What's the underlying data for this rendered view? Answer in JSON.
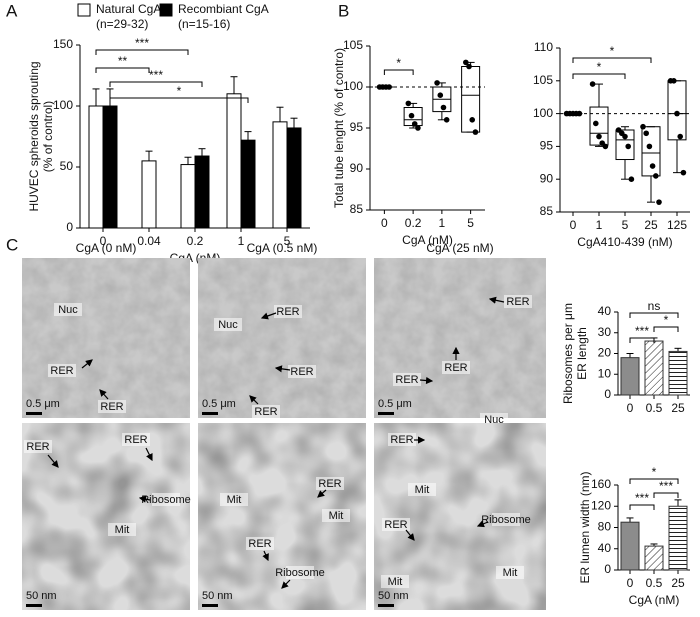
{
  "panel_labels": [
    "A",
    "B",
    "C"
  ],
  "chart_data": [
    {
      "type": "bar",
      "xlabel": "CgA (nM)",
      "ylabel": [
        "HUVEC spheroids sprouting",
        "(% of control)"
      ],
      "categories": [
        "0",
        "0.04",
        "0.2",
        "1",
        "5"
      ],
      "series": [
        {
          "name": "Natural CgA",
          "n": "(n=29-32)",
          "color": "#ffffff",
          "values": [
            100,
            55,
            52,
            110,
            87
          ],
          "errors": [
            14,
            8,
            6,
            14,
            12
          ]
        },
        {
          "name": "Recombiant CgA",
          "n": "(n=15-16)",
          "color": "#000000",
          "values": [
            100,
            null,
            59,
            72,
            82
          ],
          "errors": [
            14,
            null,
            6,
            7,
            8
          ]
        }
      ],
      "ylim": [
        0,
        150
      ],
      "yticks": [
        0,
        50,
        100,
        150
      ],
      "annotations": [
        "***",
        "**",
        "***",
        "*"
      ]
    },
    {
      "type": "box",
      "xlabel": "CgA (nM)",
      "ylabel": "Total tube lenght (% of contro)",
      "categories": [
        "0",
        "0.2",
        "1",
        "5"
      ],
      "boxes": [
        {
          "min": 100,
          "q1": 100,
          "median": 100,
          "q3": 100,
          "max": 100,
          "points": [
            100,
            100,
            100,
            100
          ]
        },
        {
          "min": 95,
          "q1": 95.3,
          "median": 96,
          "q3": 97.5,
          "max": 98,
          "points": [
            98,
            96.5,
            95.5,
            95
          ]
        },
        {
          "min": 96,
          "q1": 97,
          "median": 98.5,
          "q3": 100,
          "max": 100.5,
          "points": [
            100.5,
            99,
            97.5,
            96
          ]
        },
        {
          "min": 94.5,
          "q1": 94.5,
          "median": 99,
          "q3": 102.5,
          "max": 103,
          "points": [
            103,
            102.5,
            96,
            94.5
          ]
        }
      ],
      "ylim": [
        85,
        105
      ],
      "yticks": [
        85,
        90,
        95,
        100,
        105
      ],
      "reference_line": 100,
      "annotations": [
        "*"
      ]
    },
    {
      "type": "box",
      "xlabel": "CgA410-439 (nM)",
      "categories": [
        "0",
        "1",
        "5",
        "25",
        "125"
      ],
      "boxes": [
        {
          "min": 100,
          "q1": 100,
          "median": 100,
          "q3": 100,
          "max": 100,
          "points": [
            100,
            100,
            100,
            100,
            100
          ]
        },
        {
          "min": 95,
          "q1": 95.2,
          "median": 97,
          "q3": 101,
          "max": 104.5,
          "points": [
            104.5,
            98.5,
            96.5,
            95.5,
            95
          ]
        },
        {
          "min": 90,
          "q1": 93,
          "median": 96,
          "q3": 97.5,
          "max": 98,
          "points": [
            97.5,
            97,
            96.5,
            95,
            90
          ]
        },
        {
          "min": 86.5,
          "q1": 90.5,
          "median": 94,
          "q3": 98,
          "max": 98,
          "points": [
            98,
            97,
            95,
            92,
            90.5,
            86.5
          ]
        },
        {
          "min": 91,
          "q1": 96,
          "median": 100,
          "q3": 105,
          "max": 105,
          "points": [
            105,
            105,
            100,
            96.5,
            91
          ]
        }
      ],
      "ylim": [
        85,
        110
      ],
      "yticks": [
        85,
        90,
        95,
        100,
        105,
        110
      ],
      "reference_line": 100,
      "annotations": [
        "*",
        "*"
      ]
    },
    {
      "type": "bar",
      "ylabel": [
        "Ribosomes per μm",
        "ER length"
      ],
      "categories": [
        "0",
        "0.5",
        "25"
      ],
      "values": [
        18,
        26,
        21
      ],
      "errors": [
        2,
        1.5,
        1.5
      ],
      "bar_styles": [
        "solid",
        "diagonal",
        "horizontal"
      ],
      "color": "#8c8c8c",
      "ylim": [
        0,
        40
      ],
      "yticks": [
        0,
        10,
        20,
        30,
        40
      ],
      "annotations": [
        "ns",
        "***",
        "*"
      ]
    },
    {
      "type": "bar",
      "xlabel": "CgA (nM)",
      "ylabel": "ER lumen width (nm)",
      "categories": [
        "0",
        "0.5",
        "25"
      ],
      "values": [
        90,
        45,
        120
      ],
      "errors": [
        8,
        4,
        12
      ],
      "bar_styles": [
        "solid",
        "diagonal",
        "horizontal"
      ],
      "color": "#8c8c8c",
      "ylim": [
        0,
        160
      ],
      "yticks": [
        0,
        40,
        80,
        120,
        160
      ],
      "annotations": [
        "*",
        "***",
        "***"
      ]
    }
  ],
  "micrographs": [
    {
      "title": "CgA (0 nM)",
      "scale_bar": "0.5 μm",
      "labels": [
        "Nuc",
        "RER",
        "RER"
      ]
    },
    {
      "title": "CgA (0.5 nM)",
      "scale_bar": "0.5 μm",
      "labels": [
        "Nuc",
        "RER",
        "RER",
        "RER"
      ]
    },
    {
      "title": "CgA (25 nM)",
      "scale_bar": "0.5 μm",
      "labels": [
        "RER",
        "RER",
        "RER",
        "Nuc"
      ]
    },
    {
      "scale_bar": "50 nm",
      "labels": [
        "RER",
        "RER",
        "Ribosome",
        "Mit"
      ]
    },
    {
      "scale_bar": "50 nm",
      "labels": [
        "RER",
        "Mit",
        "Mit",
        "RER",
        "Ribosome"
      ]
    },
    {
      "scale_bar": "50 nm",
      "labels": [
        "RER",
        "Mit",
        "RER",
        "Ribosome",
        "Mit",
        "Mit"
      ]
    }
  ]
}
